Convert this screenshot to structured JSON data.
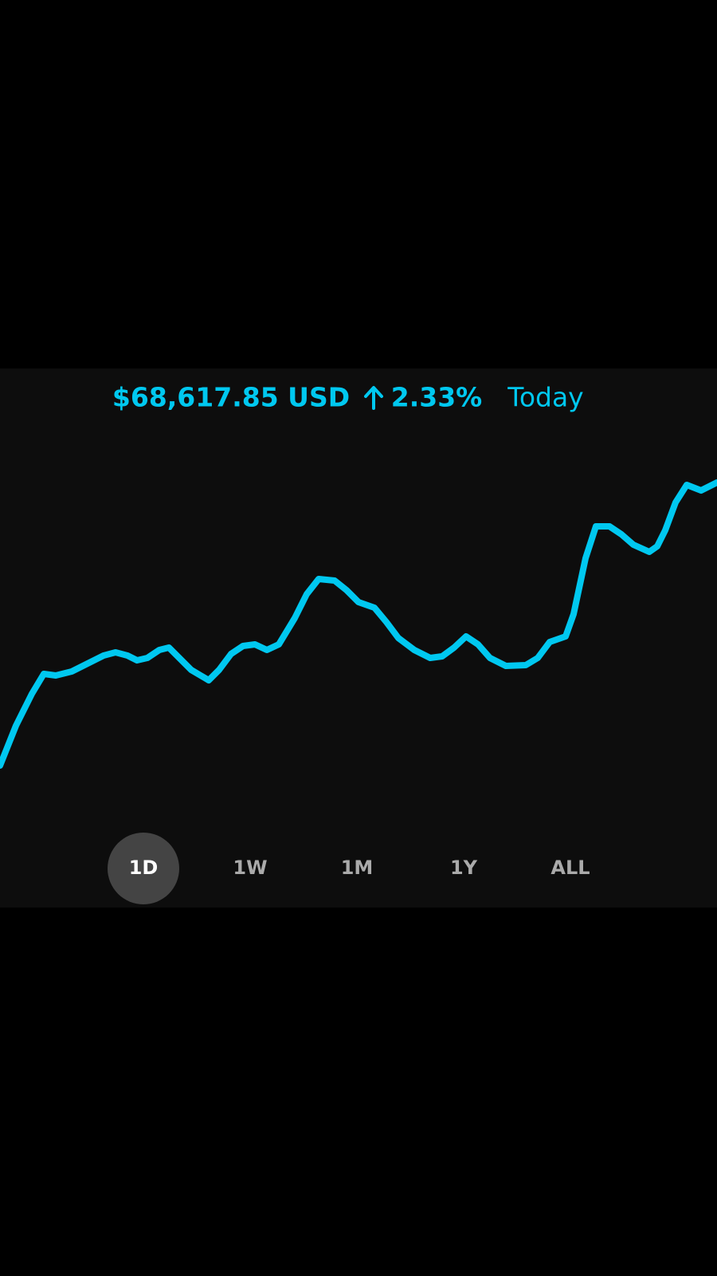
{
  "header": {
    "price": "$68,617.85 USD",
    "change": "2.33%",
    "period": "Today"
  },
  "chart_data": {
    "type": "line",
    "color": "#00c8f0",
    "x": [
      0,
      20,
      40,
      55,
      70,
      90,
      110,
      130,
      145,
      160,
      172,
      185,
      200,
      212,
      225,
      240,
      262,
      275,
      290,
      305,
      320,
      335,
      350,
      370,
      385,
      400,
      420,
      435,
      450,
      470,
      485,
      500,
      520,
      540,
      555,
      570,
      585,
      600,
      615,
      635,
      660,
      675,
      690,
      710,
      720,
      735,
      748,
      765,
      780,
      795,
      815,
      825,
      835,
      848,
      862,
      880,
      900
    ],
    "values": [
      8,
      18,
      26,
      31,
      30.6,
      31.6,
      33.6,
      35.6,
      36.4,
      35.6,
      34.4,
      35,
      37,
      37.6,
      35,
      32,
      29.4,
      32,
      36,
      38,
      38.4,
      37,
      38.4,
      45,
      51,
      54.8,
      54.4,
      52,
      49,
      47.6,
      44,
      40,
      37,
      35,
      35.4,
      37.6,
      40.4,
      38.4,
      35,
      33,
      33.2,
      35,
      39,
      40.4,
      46,
      60,
      68,
      68,
      66,
      63.4,
      61.6,
      63,
      67,
      74,
      78.4,
      77,
      79
    ],
    "xlim": [
      0,
      900
    ],
    "ylim": [
      0,
      100
    ]
  },
  "range_buttons": {
    "options": [
      "1D",
      "1W",
      "1M",
      "1Y",
      "ALL"
    ],
    "selected": 0
  }
}
